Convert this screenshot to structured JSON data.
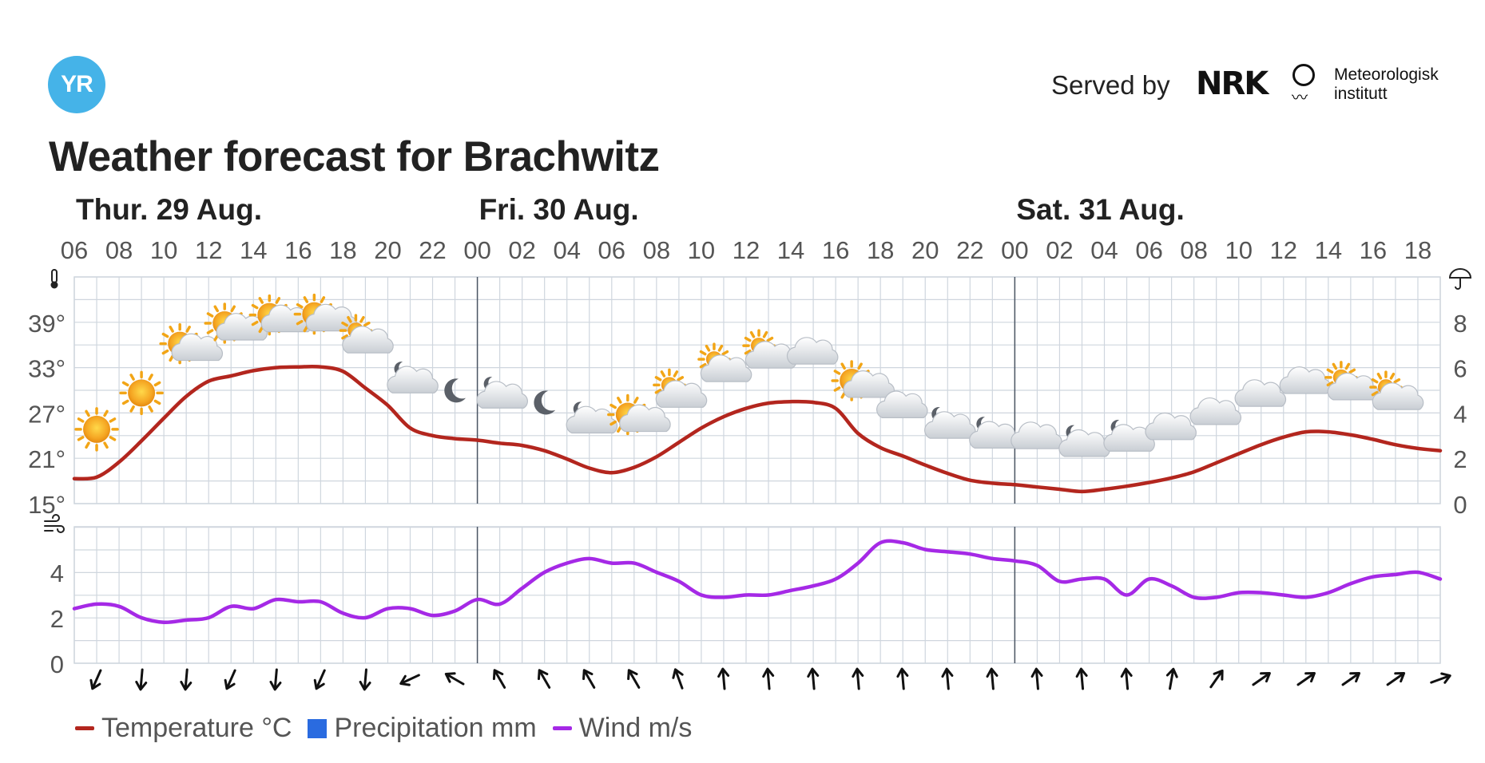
{
  "header": {
    "logo_text": "YR",
    "served_by": "Served by",
    "nrk_logo": "NRK",
    "met_logo": "Meteorologisk institutt",
    "met_text_1": "Meteorologisk",
    "met_text_2": "institutt",
    "title": "Weather forecast for Brachwitz"
  },
  "legend": {
    "temperature": "Temperature °C",
    "precipitation": "Precipitation mm",
    "wind": "Wind m/s"
  },
  "colors": {
    "temperature": "#b3261e",
    "precipitation": "#2a6be0",
    "wind": "#a529e6",
    "grid": "#cfd6de",
    "day_divider": "#4b5563",
    "logo": "#45b3e8"
  },
  "chart_data": [
    {
      "type": "line",
      "name": "temperature-chart",
      "x_tick_labels": [
        "06",
        "08",
        "10",
        "12",
        "14",
        "16",
        "18",
        "20",
        "22",
        "00",
        "02",
        "04",
        "06",
        "08",
        "10",
        "12",
        "14",
        "16",
        "18",
        "20",
        "22",
        "00",
        "02",
        "04",
        "06",
        "08",
        "10",
        "12",
        "14",
        "16",
        "18"
      ],
      "day_labels": [
        {
          "label": "Thur. 29 Aug.",
          "hour": 0
        },
        {
          "label": "Fri. 30 Aug.",
          "hour": 18
        },
        {
          "label": "Sat. 31 Aug.",
          "hour": 42
        }
      ],
      "x_range_hours_from_start": [
        0,
        61
      ],
      "y_left_ticks": [
        "15°",
        "21°",
        "27°",
        "33°",
        "39°"
      ],
      "y_left_values": [
        15,
        21,
        27,
        33,
        39
      ],
      "ylim_left": [
        15,
        45
      ],
      "y_right_ticks": [
        "0",
        "2",
        "4",
        "6",
        "8"
      ],
      "y_right_values": [
        0,
        2,
        4,
        6,
        8
      ],
      "ylim_right": [
        0,
        10
      ],
      "left_icon": "thermometer-icon",
      "right_icon": "umbrella-icon",
      "series": [
        {
          "name": "Temperature °C",
          "axis": "left",
          "x": [
            0,
            1,
            2,
            3,
            4,
            5,
            6,
            7,
            8,
            9,
            10,
            11,
            12,
            13,
            14,
            15,
            16,
            17,
            18,
            19,
            20,
            21,
            22,
            23,
            24,
            25,
            26,
            27,
            28,
            29,
            30,
            31,
            32,
            33,
            34,
            35,
            36,
            37,
            38,
            39,
            40,
            41,
            42,
            43,
            44,
            45,
            46,
            47,
            48,
            49,
            50,
            51,
            52,
            53,
            54,
            55,
            56,
            57,
            58,
            59,
            60,
            61
          ],
          "values": [
            18.3,
            18.5,
            20.5,
            23.3,
            26.3,
            29.2,
            31.2,
            31.9,
            32.6,
            33.0,
            33.1,
            33.1,
            32.5,
            30.3,
            28.0,
            25.0,
            24.0,
            23.6,
            23.4,
            23.0,
            22.7,
            22.0,
            20.9,
            19.7,
            19.1,
            19.8,
            21.2,
            23.1,
            25.0,
            26.5,
            27.6,
            28.3,
            28.5,
            28.4,
            27.6,
            24.3,
            22.4,
            21.3,
            20.1,
            19.0,
            18.1,
            17.7,
            17.5,
            17.2,
            16.9,
            16.6,
            16.9,
            17.3,
            17.8,
            18.4,
            19.2,
            20.4,
            21.6,
            22.8,
            23.8,
            24.5,
            24.5,
            24.1,
            23.5,
            22.8,
            22.3,
            22.0
          ]
        },
        {
          "name": "Precipitation mm",
          "axis": "right",
          "values": []
        }
      ],
      "weather_symbols": [
        {
          "hour": 1,
          "symbol": "clearsky_day"
        },
        {
          "hour": 3,
          "symbol": "clearsky_day"
        },
        {
          "hour": 5,
          "symbol": "fair_day"
        },
        {
          "hour": 7,
          "symbol": "fair_day"
        },
        {
          "hour": 9,
          "symbol": "fair_day"
        },
        {
          "hour": 11,
          "symbol": "fair_day"
        },
        {
          "hour": 13,
          "symbol": "partlycloudy_day"
        },
        {
          "hour": 15,
          "symbol": "partlycloudy_night"
        },
        {
          "hour": 17,
          "symbol": "clearsky_night"
        },
        {
          "hour": 19,
          "symbol": "partlycloudy_night"
        },
        {
          "hour": 21,
          "symbol": "clearsky_night"
        },
        {
          "hour": 23,
          "symbol": "partlycloudy_night"
        },
        {
          "hour": 25,
          "symbol": "fair_day"
        },
        {
          "hour": 27,
          "symbol": "partlycloudy_day"
        },
        {
          "hour": 29,
          "symbol": "partlycloudy_day"
        },
        {
          "hour": 31,
          "symbol": "partlycloudy_day"
        },
        {
          "hour": 33,
          "symbol": "cloudy"
        },
        {
          "hour": 35,
          "symbol": "fair_day"
        },
        {
          "hour": 37,
          "symbol": "cloudy"
        },
        {
          "hour": 39,
          "symbol": "partlycloudy_night"
        },
        {
          "hour": 41,
          "symbol": "partlycloudy_night"
        },
        {
          "hour": 43,
          "symbol": "cloudy"
        },
        {
          "hour": 45,
          "symbol": "partlycloudy_night"
        },
        {
          "hour": 47,
          "symbol": "partlycloudy_night"
        },
        {
          "hour": 49,
          "symbol": "cloudy"
        },
        {
          "hour": 51,
          "symbol": "cloudy"
        },
        {
          "hour": 53,
          "symbol": "cloudy"
        },
        {
          "hour": 55,
          "symbol": "cloudy"
        },
        {
          "hour": 57,
          "symbol": "partlycloudy_day"
        },
        {
          "hour": 59,
          "symbol": "partlycloudy_day"
        }
      ],
      "grid": true,
      "legend": "bottom-left"
    },
    {
      "type": "line",
      "name": "wind-chart",
      "y_left_ticks": [
        "0",
        "2",
        "4"
      ],
      "y_left_values": [
        0,
        2,
        4
      ],
      "ylim_left": [
        0,
        6
      ],
      "left_icon": "wind-icon",
      "series": [
        {
          "name": "Wind m/s",
          "x": [
            0,
            1,
            2,
            3,
            4,
            5,
            6,
            7,
            8,
            9,
            10,
            11,
            12,
            13,
            14,
            15,
            16,
            17,
            18,
            19,
            20,
            21,
            22,
            23,
            24,
            25,
            26,
            27,
            28,
            29,
            30,
            31,
            32,
            33,
            34,
            35,
            36,
            37,
            38,
            39,
            40,
            41,
            42,
            43,
            44,
            45,
            46,
            47,
            48,
            49,
            50,
            51,
            52,
            53,
            54,
            55,
            56,
            57,
            58,
            59,
            60,
            61
          ],
          "values": [
            2.4,
            2.6,
            2.5,
            2.0,
            1.8,
            1.9,
            2.0,
            2.5,
            2.4,
            2.8,
            2.7,
            2.7,
            2.2,
            2.0,
            2.4,
            2.4,
            2.1,
            2.3,
            2.8,
            2.6,
            3.3,
            4.0,
            4.4,
            4.6,
            4.4,
            4.4,
            4.0,
            3.6,
            3.0,
            2.9,
            3.0,
            3.0,
            3.2,
            3.4,
            3.7,
            4.4,
            5.3,
            5.3,
            5.0,
            4.9,
            4.8,
            4.6,
            4.5,
            4.3,
            3.6,
            3.7,
            3.7,
            3.0,
            3.7,
            3.4,
            2.9,
            2.9,
            3.1,
            3.1,
            3.0,
            2.9,
            3.1,
            3.5,
            3.8,
            3.9,
            4.0,
            3.7
          ]
        }
      ],
      "wind_direction_deg": [
        204,
        185,
        185,
        204,
        185,
        204,
        185,
        245,
        300,
        330,
        330,
        330,
        330,
        340,
        355,
        355,
        355,
        355,
        355,
        355,
        355,
        355,
        355,
        355,
        10,
        35,
        55,
        55,
        55,
        55,
        70
      ],
      "grid": true
    }
  ]
}
